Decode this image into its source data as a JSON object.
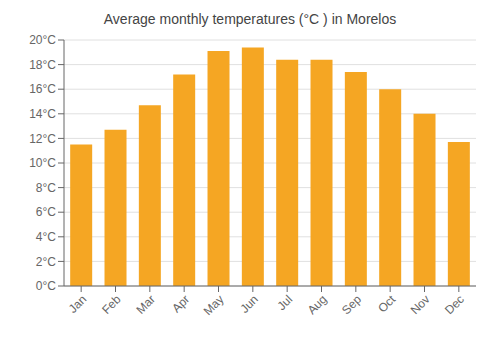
{
  "chart_data": {
    "type": "bar",
    "title": "Average monthly temperatures (°C ) in Morelos",
    "categories": [
      "Jan",
      "Feb",
      "Mar",
      "Apr",
      "May",
      "Jun",
      "Jul",
      "Aug",
      "Sep",
      "Oct",
      "Nov",
      "Dec"
    ],
    "values": [
      11.5,
      12.7,
      14.7,
      17.2,
      19.1,
      19.4,
      18.4,
      18.4,
      17.4,
      16.0,
      14.0,
      11.7
    ],
    "color": "#F5A623",
    "ylim": [
      0,
      20
    ],
    "yticks": [
      {
        "value": 0,
        "label": "0°C"
      },
      {
        "value": 2,
        "label": "2°C"
      },
      {
        "value": 4,
        "label": "4°C"
      },
      {
        "value": 6,
        "label": "6°C"
      },
      {
        "value": 8,
        "label": "8°C"
      },
      {
        "value": 10,
        "label": "10°C"
      },
      {
        "value": 12,
        "label": "12°C"
      },
      {
        "value": 14,
        "label": "14°C"
      },
      {
        "value": 16,
        "label": "16°C"
      },
      {
        "value": 18,
        "label": "18°C"
      },
      {
        "value": 20,
        "label": "20°C"
      }
    ],
    "grid": true
  }
}
